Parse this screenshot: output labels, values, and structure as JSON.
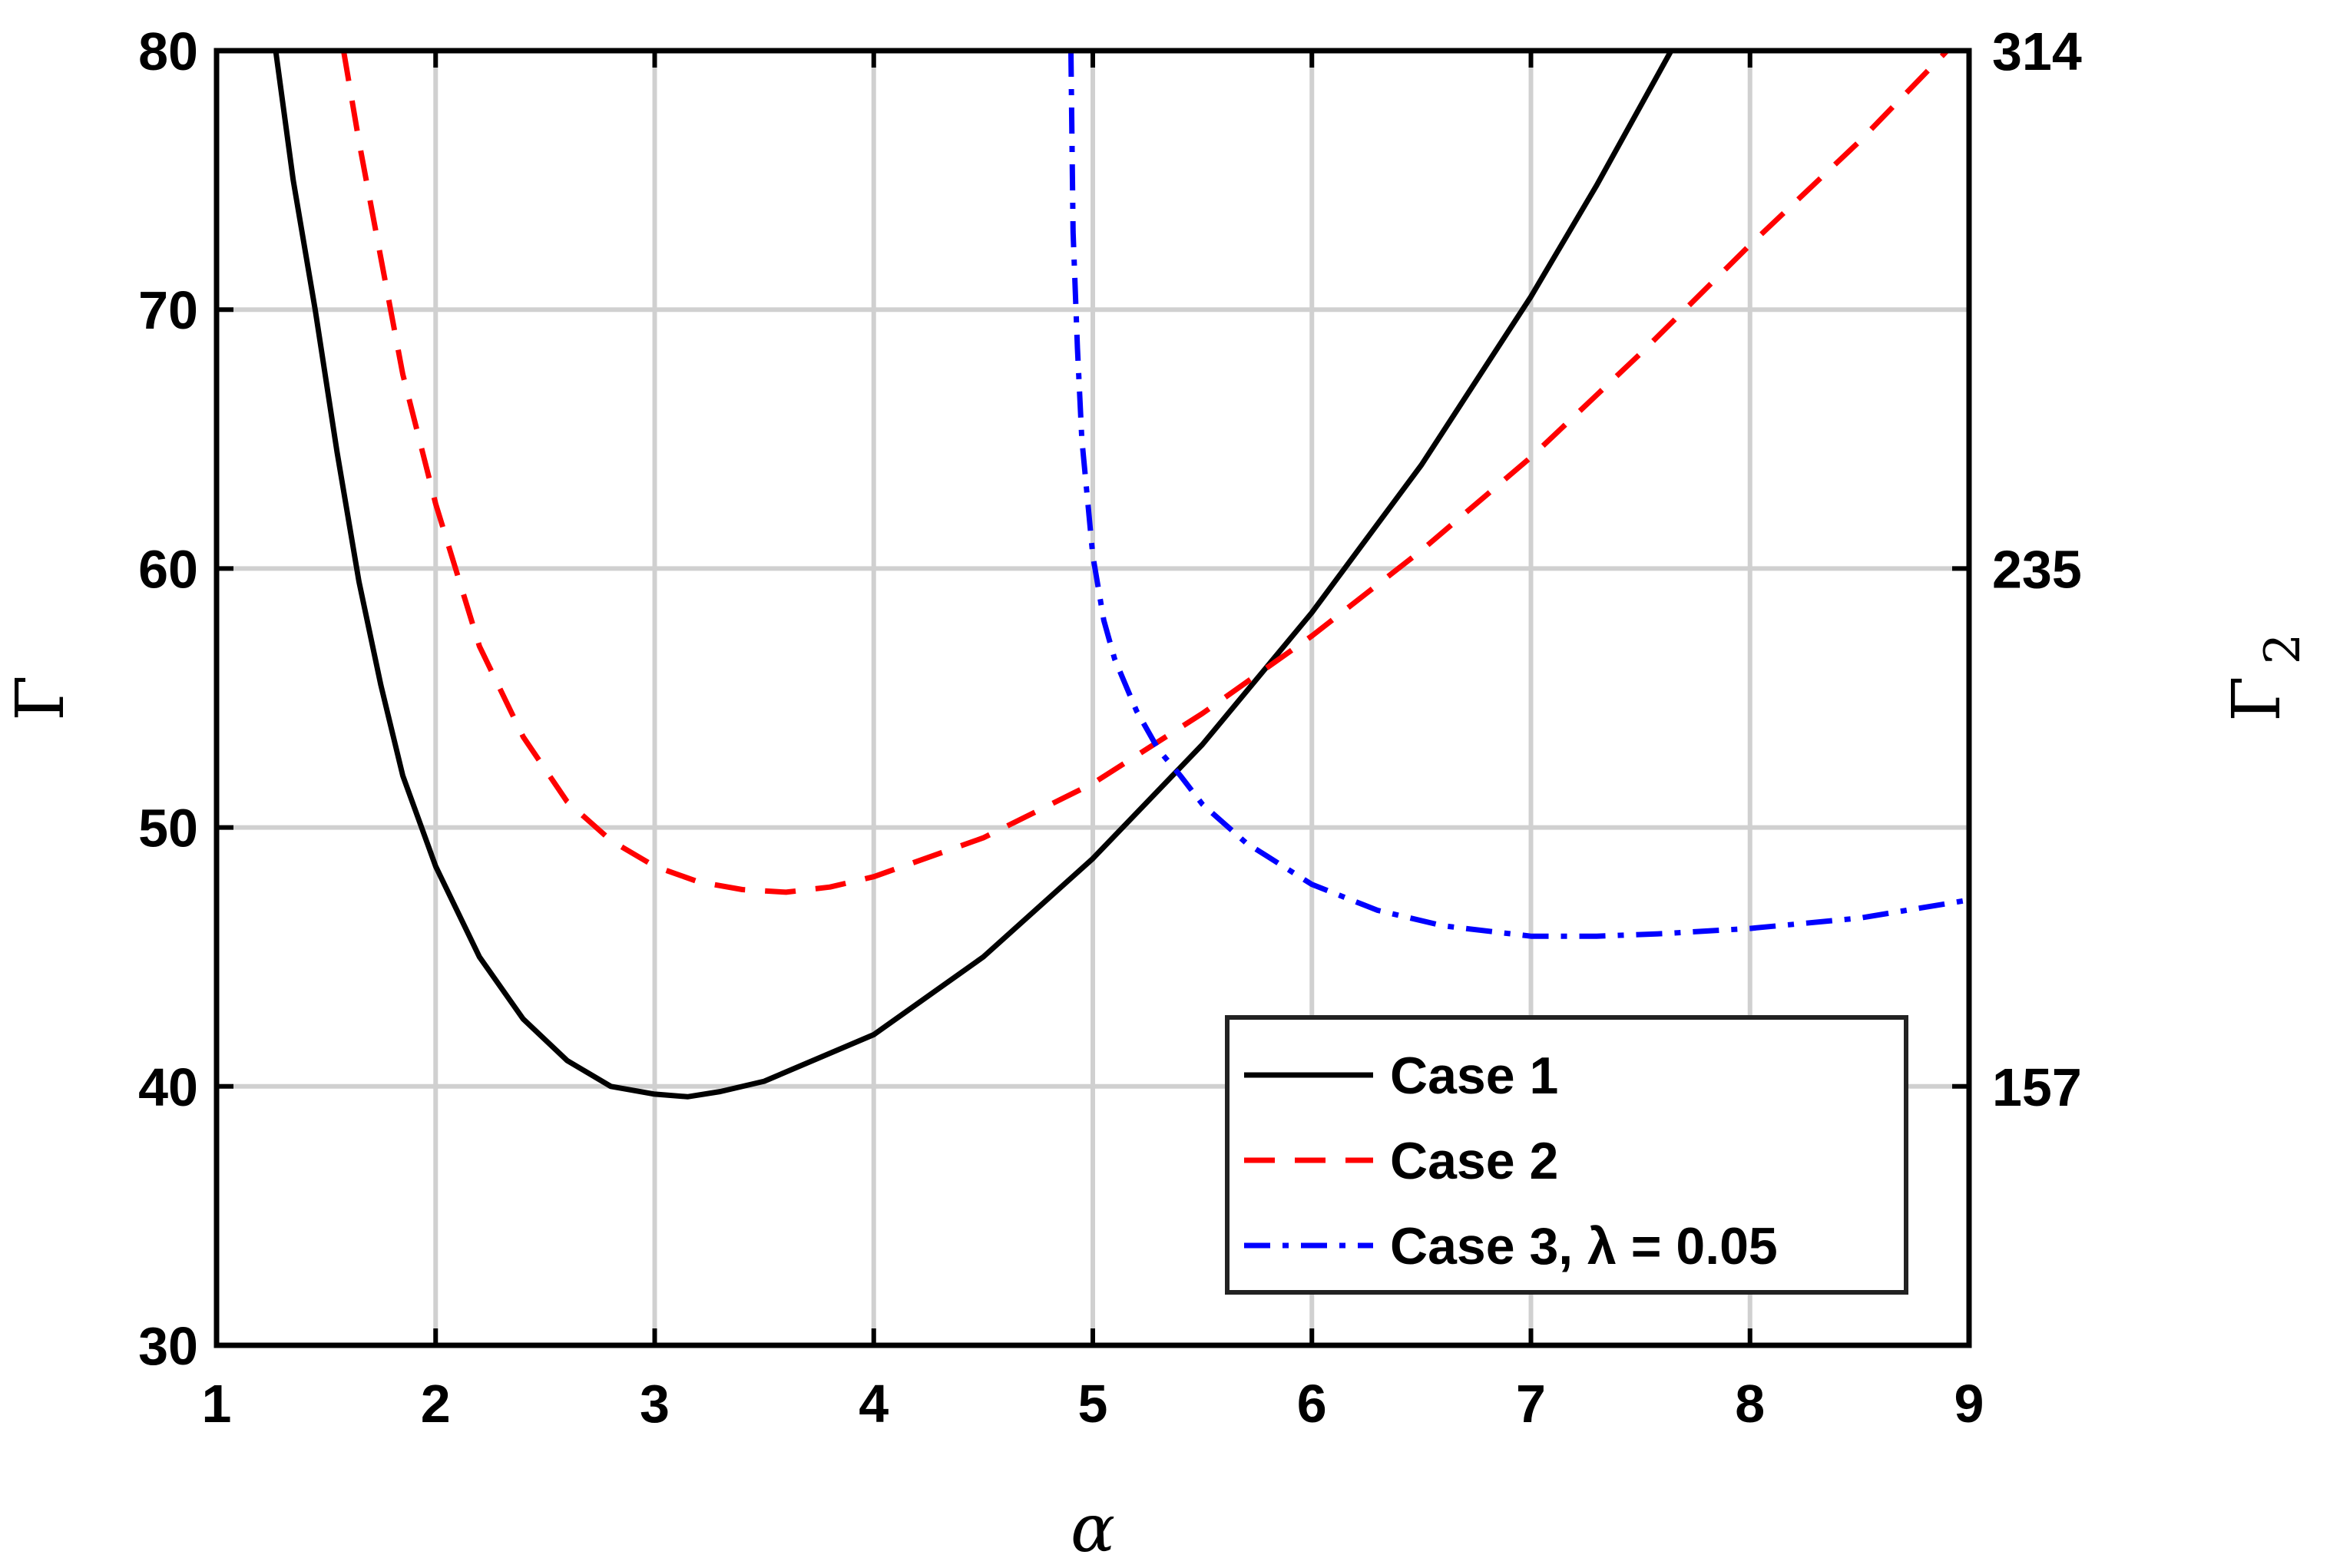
{
  "chart_data": {
    "type": "line",
    "title": "",
    "xlabel": "α",
    "ylabel": "Γ",
    "y2label": "Γ",
    "y2label_subscript": "2",
    "xlim": [
      1,
      9
    ],
    "ylim": [
      30,
      80
    ],
    "y2_ticks": [
      {
        "label": "314",
        "at_left_y": 80
      },
      {
        "label": "235",
        "at_left_y": 60
      },
      {
        "label": "157",
        "at_left_y": 40
      }
    ],
    "x_ticks": [
      "1",
      "2",
      "3",
      "4",
      "5",
      "6",
      "7",
      "8",
      "9"
    ],
    "y_ticks": [
      "30",
      "40",
      "50",
      "60",
      "70",
      "80"
    ],
    "x_tick_values": [
      1,
      2,
      3,
      4,
      5,
      6,
      7,
      8,
      9
    ],
    "y_tick_values": [
      30,
      40,
      50,
      60,
      70,
      80
    ],
    "grid": true,
    "legend_position": "bottom-right",
    "series": [
      {
        "name": "Case 1",
        "color": "#000000",
        "dash": "solid",
        "x": [
          1.27,
          1.35,
          1.45,
          1.55,
          1.65,
          1.75,
          1.85,
          2.0,
          2.2,
          2.4,
          2.6,
          2.8,
          3.0,
          3.15,
          3.3,
          3.5,
          4.0,
          4.5,
          5.0,
          5.5,
          6.0,
          6.5,
          7.0,
          7.3,
          7.64
        ],
        "y": [
          80,
          75,
          70,
          64.5,
          59.5,
          55.5,
          52.0,
          48.5,
          45.0,
          42.6,
          41.0,
          40.0,
          39.7,
          39.6,
          39.8,
          40.2,
          42.0,
          45.0,
          48.8,
          53.2,
          58.3,
          64.0,
          70.5,
          74.8,
          80
        ]
      },
      {
        "name": "Case 2",
        "color": "#ff0000",
        "dash": "dashed",
        "x": [
          1.58,
          1.65,
          1.75,
          1.85,
          2.0,
          2.2,
          2.4,
          2.6,
          2.8,
          3.0,
          3.2,
          3.4,
          3.6,
          3.8,
          4.0,
          4.5,
          5.0,
          5.5,
          6.0,
          6.5,
          7.0,
          7.5,
          8.0,
          8.5,
          8.9
        ],
        "y": [
          80,
          76.5,
          72.0,
          67.5,
          62.5,
          57.0,
          53.5,
          51.0,
          49.5,
          48.5,
          47.9,
          47.6,
          47.5,
          47.7,
          48.1,
          49.6,
          51.7,
          54.4,
          57.4,
          60.7,
          64.3,
          68.3,
          72.5,
          76.5,
          80
        ]
      },
      {
        "name": "Case 3, λ = 0.05",
        "color": "#0000ff",
        "dash": "dashdot",
        "x": [
          4.9,
          4.91,
          4.93,
          4.95,
          5.0,
          5.05,
          5.1,
          5.2,
          5.3,
          5.4,
          5.5,
          5.7,
          6.0,
          6.3,
          6.6,
          7.0,
          7.3,
          7.6,
          8.0,
          8.5,
          9.0
        ],
        "y": [
          80,
          73.0,
          68.5,
          65.0,
          60.5,
          58.0,
          56.5,
          54.5,
          53.0,
          52.0,
          50.9,
          49.4,
          47.8,
          46.8,
          46.2,
          45.8,
          45.8,
          45.9,
          46.1,
          46.5,
          47.2
        ]
      }
    ]
  }
}
